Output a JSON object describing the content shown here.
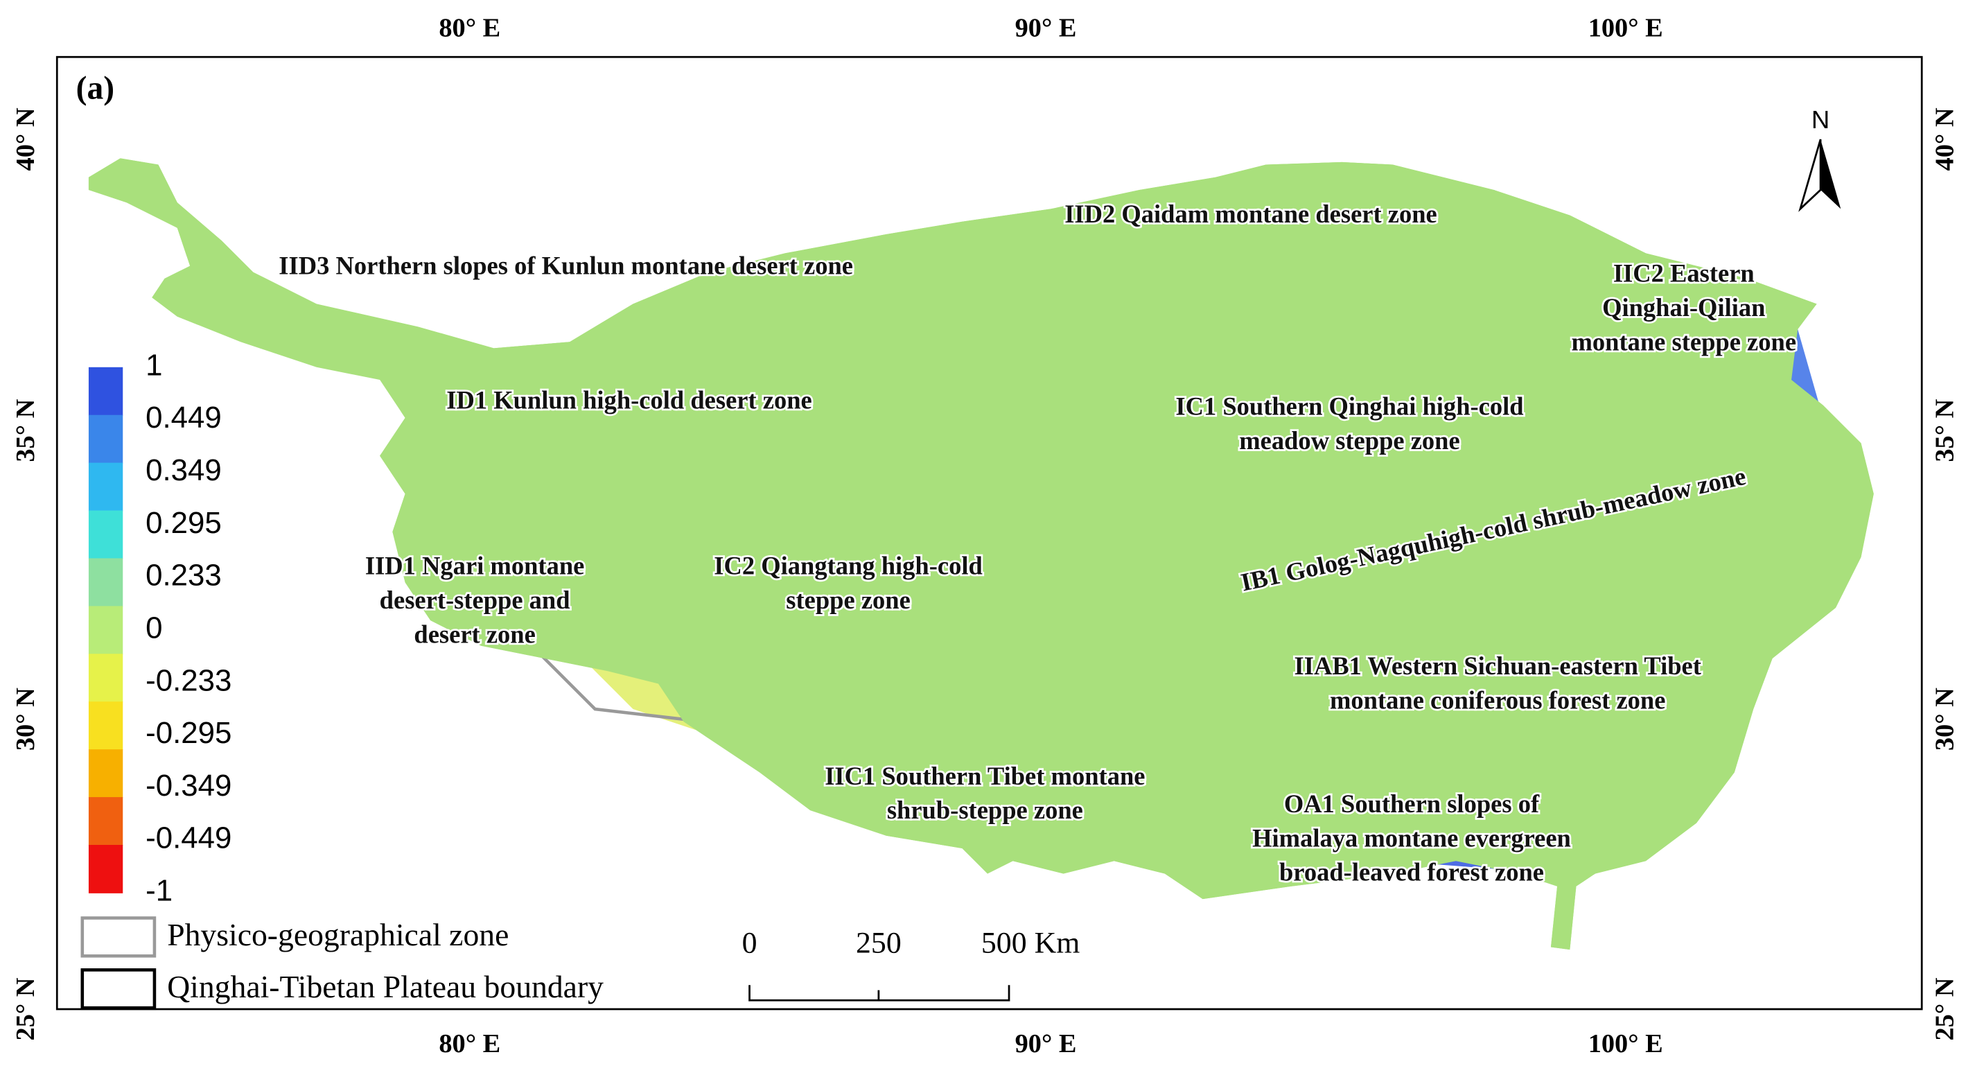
{
  "panel_label": "(a)",
  "graticule": {
    "lon": [
      "80° E",
      "90° E",
      "100° E"
    ],
    "lat": [
      "40° N",
      "35° N",
      "30° N",
      "25° N"
    ]
  },
  "colorbar": {
    "labels": [
      "1",
      "0.449",
      "0.349",
      "0.295",
      "0.233",
      "0",
      "-0.233",
      "-0.295",
      "-0.349",
      "-0.449",
      "-1"
    ],
    "colors": [
      "#2f52e0",
      "#3a86ea",
      "#2fb8f0",
      "#3ee0d8",
      "#8ee0a0",
      "#b8ec78",
      "#e6f24a",
      "#f8e020",
      "#f7b000",
      "#f06010",
      "#ee1010"
    ]
  },
  "legend": [
    "Physico-geographical zone",
    "Qinghai-Tibetan Plateau boundary"
  ],
  "scale_bar": [
    "0",
    "250",
    "500 Km"
  ],
  "north": "N",
  "zones": [
    {
      "lines": [
        "IID3 Northern slopes of Kunlun montane desert zone"
      ]
    },
    {
      "lines": [
        "IID2 Qaidam montane desert zone"
      ]
    },
    {
      "lines": [
        "IIC2 Eastern",
        "Qinghai-Qilian",
        "montane steppe zone"
      ]
    },
    {
      "lines": [
        "ID1 Kunlun high-cold desert zone"
      ]
    },
    {
      "lines": [
        "IC1 Southern Qinghai high-cold",
        "meadow steppe zone"
      ]
    },
    {
      "lines": [
        "IB1 Golog-Nagquhigh-cold shrub-meadow zone"
      ]
    },
    {
      "lines": [
        "IID1 Ngari montane",
        "desert-steppe and",
        "desert zone"
      ]
    },
    {
      "lines": [
        "IC2 Qiangtang high-cold",
        "steppe zone"
      ]
    },
    {
      "lines": [
        "IIAB1 Western Sichuan-eastern Tibet",
        "montane coniferous forest zone"
      ]
    },
    {
      "lines": [
        "IIC1 Southern Tibet montane",
        "shrub-steppe zone"
      ]
    },
    {
      "lines": [
        "OA1 Southern slopes of",
        "Himalaya montane evergreen",
        "broad-leaved forest zone"
      ]
    }
  ]
}
